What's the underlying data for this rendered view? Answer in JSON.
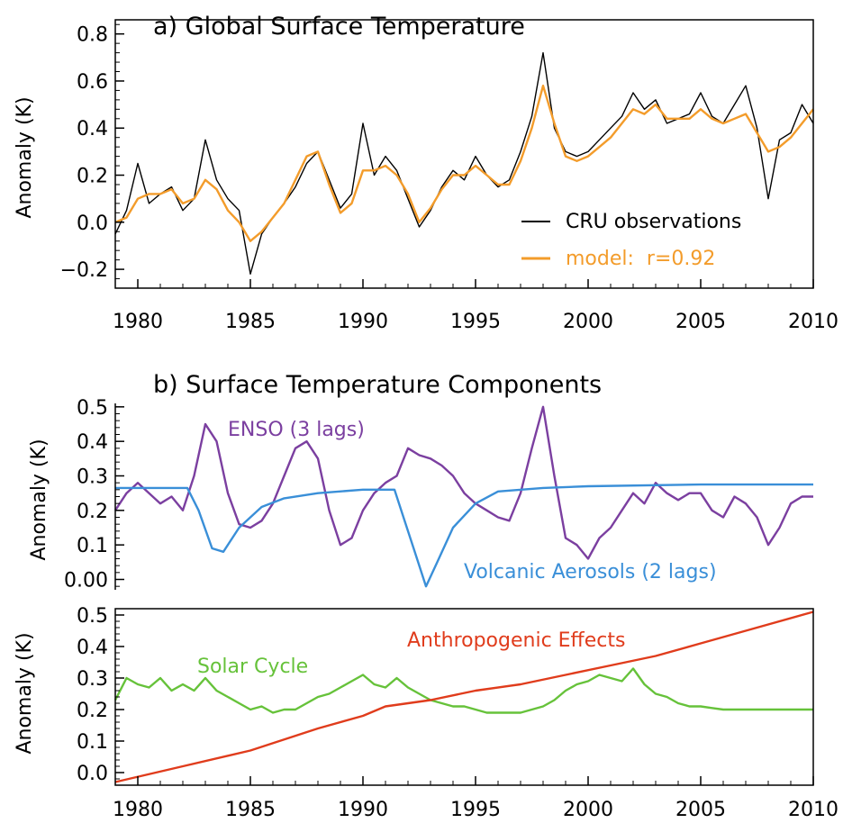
{
  "chart_data": [
    {
      "panel": "a",
      "type": "line",
      "title": "a) Global Surface Temperature",
      "xlabel": "",
      "ylabel": "Anomaly (K)",
      "xlim": [
        1979,
        2010
      ],
      "ylim": [
        -0.28,
        0.86
      ],
      "x_ticks": [
        1980,
        1985,
        1990,
        1995,
        2000,
        2005,
        2010
      ],
      "y_ticks": [
        -0.2,
        0.0,
        0.2,
        0.4,
        0.6,
        0.8
      ],
      "y_tick_labels": [
        "−0.2",
        "0.0",
        "0.2",
        "0.4",
        "0.6",
        "0.8"
      ],
      "legend": {
        "placement": "lower-right",
        "entries": [
          "CRU observations",
          "model:  r=0.92"
        ]
      },
      "series": [
        {
          "name": "CRU observations",
          "color": "#000000",
          "x": [
            1979.0,
            1979.5,
            1980.0,
            1980.5,
            1981.0,
            1981.5,
            1982.0,
            1982.5,
            1983.0,
            1983.5,
            1984.0,
            1984.5,
            1985.0,
            1985.5,
            1986.0,
            1986.5,
            1987.0,
            1987.5,
            1988.0,
            1988.5,
            1989.0,
            1989.5,
            1990.0,
            1990.5,
            1991.0,
            1991.5,
            1992.0,
            1992.5,
            1993.0,
            1993.5,
            1994.0,
            1994.5,
            1995.0,
            1995.5,
            1996.0,
            1996.5,
            1997.0,
            1997.5,
            1998.0,
            1998.5,
            1999.0,
            1999.5,
            2000.0,
            2000.5,
            2001.0,
            2001.5,
            2002.0,
            2002.5,
            2003.0,
            2003.5,
            2004.0,
            2004.5,
            2005.0,
            2005.5,
            2006.0,
            2006.5,
            2007.0,
            2007.5,
            2008.0,
            2008.5,
            2009.0,
            2009.5,
            2010.0
          ],
          "y": [
            -0.05,
            0.05,
            0.25,
            0.08,
            0.12,
            0.15,
            0.05,
            0.1,
            0.35,
            0.18,
            0.1,
            0.05,
            -0.22,
            -0.05,
            0.02,
            0.08,
            0.15,
            0.25,
            0.3,
            0.18,
            0.06,
            0.12,
            0.42,
            0.2,
            0.28,
            0.22,
            0.1,
            -0.02,
            0.05,
            0.15,
            0.22,
            0.18,
            0.28,
            0.2,
            0.15,
            0.18,
            0.3,
            0.45,
            0.72,
            0.4,
            0.3,
            0.28,
            0.3,
            0.35,
            0.4,
            0.45,
            0.55,
            0.48,
            0.52,
            0.42,
            0.44,
            0.46,
            0.55,
            0.45,
            0.42,
            0.5,
            0.58,
            0.4,
            0.1,
            0.35,
            0.38,
            0.5,
            0.42
          ]
        },
        {
          "name": "model:  r=0.92",
          "color": "#f39c2b",
          "x": [
            1979.0,
            1979.5,
            1980.0,
            1980.5,
            1981.0,
            1981.5,
            1982.0,
            1982.5,
            1983.0,
            1983.5,
            1984.0,
            1984.5,
            1985.0,
            1985.5,
            1986.0,
            1986.5,
            1987.0,
            1987.5,
            1988.0,
            1988.5,
            1989.0,
            1989.5,
            1990.0,
            1990.5,
            1991.0,
            1991.5,
            1992.0,
            1992.5,
            1993.0,
            1993.5,
            1994.0,
            1994.5,
            1995.0,
            1995.5,
            1996.0,
            1996.5,
            1997.0,
            1997.5,
            1998.0,
            1998.5,
            1999.0,
            1999.5,
            2000.0,
            2000.5,
            2001.0,
            2001.5,
            2002.0,
            2002.5,
            2003.0,
            2003.5,
            2004.0,
            2004.5,
            2005.0,
            2005.5,
            2006.0,
            2006.5,
            2007.0,
            2007.5,
            2008.0,
            2008.5,
            2009.0,
            2009.5,
            2010.0
          ],
          "y": [
            0.0,
            0.02,
            0.1,
            0.12,
            0.12,
            0.14,
            0.08,
            0.1,
            0.18,
            0.14,
            0.05,
            0.0,
            -0.08,
            -0.04,
            0.02,
            0.08,
            0.18,
            0.28,
            0.3,
            0.16,
            0.04,
            0.08,
            0.22,
            0.22,
            0.24,
            0.2,
            0.12,
            0.0,
            0.06,
            0.14,
            0.2,
            0.2,
            0.24,
            0.2,
            0.16,
            0.16,
            0.26,
            0.4,
            0.58,
            0.42,
            0.28,
            0.26,
            0.28,
            0.32,
            0.36,
            0.42,
            0.48,
            0.46,
            0.5,
            0.44,
            0.44,
            0.44,
            0.48,
            0.44,
            0.42,
            0.44,
            0.46,
            0.38,
            0.3,
            0.32,
            0.36,
            0.42,
            0.48
          ]
        }
      ]
    },
    {
      "panel": "b-upper",
      "type": "line",
      "title": "b) Surface Temperature Components",
      "xlabel": "",
      "ylabel": "Anomaly (K)",
      "xlim": [
        1979,
        2010
      ],
      "ylim": [
        -0.03,
        0.51
      ],
      "y_ticks": [
        0.0,
        0.1,
        0.2,
        0.3,
        0.4,
        0.5
      ],
      "y_tick_labels": [
        "0.00",
        "0.1",
        "0.2",
        "0.3",
        "0.4",
        "0.5"
      ],
      "series": [
        {
          "name": "ENSO (3 lags)",
          "color": "#7b3fa0",
          "x": [
            1979.0,
            1979.5,
            1980.0,
            1980.5,
            1981.0,
            1981.5,
            1982.0,
            1982.5,
            1983.0,
            1983.5,
            1984.0,
            1984.5,
            1985.0,
            1985.5,
            1986.0,
            1986.5,
            1987.0,
            1987.5,
            1988.0,
            1988.5,
            1989.0,
            1989.5,
            1990.0,
            1990.5,
            1991.0,
            1991.5,
            1992.0,
            1992.5,
            1993.0,
            1993.5,
            1994.0,
            1994.5,
            1995.0,
            1995.5,
            1996.0,
            1996.5,
            1997.0,
            1997.5,
            1998.0,
            1998.5,
            1999.0,
            1999.5,
            2000.0,
            2000.5,
            2001.0,
            2001.5,
            2002.0,
            2002.5,
            2003.0,
            2003.5,
            2004.0,
            2004.5,
            2005.0,
            2005.5,
            2006.0,
            2006.5,
            2007.0,
            2007.5,
            2008.0,
            2008.5,
            2009.0,
            2009.5,
            2010.0
          ],
          "y": [
            0.2,
            0.25,
            0.28,
            0.25,
            0.22,
            0.24,
            0.2,
            0.3,
            0.45,
            0.4,
            0.25,
            0.16,
            0.15,
            0.17,
            0.22,
            0.3,
            0.38,
            0.4,
            0.35,
            0.2,
            0.1,
            0.12,
            0.2,
            0.25,
            0.28,
            0.3,
            0.38,
            0.36,
            0.35,
            0.33,
            0.3,
            0.25,
            0.22,
            0.2,
            0.18,
            0.17,
            0.25,
            0.38,
            0.5,
            0.3,
            0.12,
            0.1,
            0.06,
            0.12,
            0.15,
            0.2,
            0.25,
            0.22,
            0.28,
            0.25,
            0.23,
            0.25,
            0.25,
            0.2,
            0.18,
            0.24,
            0.22,
            0.18,
            0.1,
            0.15,
            0.22,
            0.24,
            0.24
          ]
        },
        {
          "name": "Volcanic Aerosols (2 lags)",
          "color": "#3a8fd8",
          "x": [
            1979.0,
            1982.2,
            1982.7,
            1983.3,
            1983.8,
            1984.5,
            1985.5,
            1986.5,
            1988.0,
            1990.0,
            1991.0,
            1991.4,
            1991.8,
            1992.3,
            1992.8,
            1993.3,
            1994.0,
            1995.0,
            1996.0,
            1998.0,
            2000.0,
            2005.0,
            2010.0
          ],
          "y": [
            0.265,
            0.265,
            0.2,
            0.09,
            0.08,
            0.15,
            0.21,
            0.235,
            0.25,
            0.26,
            0.26,
            0.26,
            0.18,
            0.08,
            -0.02,
            0.05,
            0.15,
            0.22,
            0.255,
            0.265,
            0.27,
            0.275,
            0.275
          ]
        }
      ]
    },
    {
      "panel": "b-lower",
      "type": "line",
      "title": "",
      "xlabel": "",
      "ylabel": "Anomaly (K)",
      "xlim": [
        1979,
        2010
      ],
      "ylim": [
        -0.04,
        0.52
      ],
      "x_ticks": [
        1980,
        1985,
        1990,
        1995,
        2000,
        2005,
        2010
      ],
      "y_ticks": [
        0.0,
        0.1,
        0.2,
        0.3,
        0.4,
        0.5
      ],
      "y_tick_labels": [
        "0.0",
        "0.1",
        "0.2",
        "0.3",
        "0.4",
        "0.5"
      ],
      "series": [
        {
          "name": "Solar Cycle",
          "color": "#66c23a",
          "x": [
            1979.0,
            1979.5,
            1980.0,
            1980.5,
            1981.0,
            1981.5,
            1982.0,
            1982.5,
            1983.0,
            1983.5,
            1984.0,
            1984.5,
            1985.0,
            1985.5,
            1986.0,
            1986.5,
            1987.0,
            1987.5,
            1988.0,
            1988.5,
            1989.0,
            1989.5,
            1990.0,
            1990.5,
            1991.0,
            1991.5,
            1992.0,
            1992.5,
            1993.0,
            1993.5,
            1994.0,
            1994.5,
            1995.0,
            1995.5,
            1996.0,
            1996.5,
            1997.0,
            1997.5,
            1998.0,
            1998.5,
            1999.0,
            1999.5,
            2000.0,
            2000.5,
            2001.0,
            2001.5,
            2002.0,
            2002.5,
            2003.0,
            2003.5,
            2004.0,
            2004.5,
            2005.0,
            2005.5,
            2006.0,
            2006.5,
            2007.0,
            2007.5,
            2008.0,
            2008.5,
            2009.0,
            2009.5,
            2010.0
          ],
          "y": [
            0.23,
            0.3,
            0.28,
            0.27,
            0.3,
            0.26,
            0.28,
            0.26,
            0.3,
            0.26,
            0.24,
            0.22,
            0.2,
            0.21,
            0.19,
            0.2,
            0.2,
            0.22,
            0.24,
            0.25,
            0.27,
            0.29,
            0.31,
            0.28,
            0.27,
            0.3,
            0.27,
            0.25,
            0.23,
            0.22,
            0.21,
            0.21,
            0.2,
            0.19,
            0.19,
            0.19,
            0.19,
            0.2,
            0.21,
            0.23,
            0.26,
            0.28,
            0.29,
            0.31,
            0.3,
            0.29,
            0.33,
            0.28,
            0.25,
            0.24,
            0.22,
            0.21,
            0.21,
            0.205,
            0.2,
            0.2,
            0.2,
            0.2,
            0.2,
            0.2,
            0.2,
            0.2,
            0.2
          ]
        },
        {
          "name": "Anthropogenic Effects",
          "color": "#e03c1c",
          "x": [
            1979.0,
            1982.0,
            1985.0,
            1988.0,
            1990.0,
            1991.0,
            1993.0,
            1995.0,
            1997.0,
            1999.0,
            2001.0,
            2003.0,
            2005.0,
            2007.0,
            2010.0
          ],
          "y": [
            -0.03,
            0.02,
            0.07,
            0.14,
            0.18,
            0.21,
            0.23,
            0.26,
            0.28,
            0.31,
            0.34,
            0.37,
            0.41,
            0.45,
            0.51
          ]
        }
      ]
    }
  ]
}
